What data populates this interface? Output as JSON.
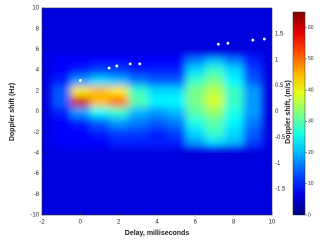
{
  "chart_data": {
    "type": "heatmap",
    "xlabel": "Delay, milliseconds",
    "ylabel": "Doppler shift (Hz)",
    "y2label": "Doppler shift, (m/s)",
    "x": [
      -1,
      0,
      1,
      2,
      3,
      4,
      5,
      6,
      7,
      8,
      9
    ],
    "y": [
      -3,
      -2,
      -1,
      0,
      1,
      2,
      3,
      4,
      5
    ],
    "z": [
      [
        8,
        8,
        8,
        10,
        10,
        10,
        10,
        18,
        22,
        20,
        12
      ],
      [
        8,
        8,
        10,
        12,
        12,
        10,
        12,
        22,
        28,
        22,
        14
      ],
      [
        8,
        10,
        14,
        18,
        16,
        14,
        16,
        26,
        30,
        24,
        16
      ],
      [
        10,
        18,
        25,
        28,
        20,
        18,
        20,
        30,
        34,
        26,
        18
      ],
      [
        14,
        60,
        45,
        50,
        30,
        24,
        24,
        32,
        38,
        28,
        18
      ],
      [
        14,
        42,
        45,
        42,
        28,
        22,
        22,
        32,
        36,
        28,
        18
      ],
      [
        10,
        18,
        22,
        20,
        16,
        14,
        14,
        28,
        32,
        24,
        14
      ],
      [
        8,
        10,
        12,
        12,
        10,
        10,
        10,
        22,
        28,
        22,
        12
      ],
      [
        8,
        8,
        8,
        8,
        8,
        8,
        8,
        16,
        20,
        16,
        10
      ]
    ],
    "background": 6,
    "markers": {
      "x": [
        0,
        1.5,
        1.9,
        2.6,
        3.1,
        7.2,
        7.7,
        9.0,
        9.6
      ],
      "y": [
        3,
        4.2,
        4.4,
        4.6,
        4.6,
        6.5,
        6.6,
        6.9,
        7.0
      ],
      "color": "#ffffff"
    },
    "xlim": [
      -2,
      10
    ],
    "xticks": [
      -2,
      0,
      2,
      4,
      6,
      8,
      10
    ],
    "ylim": [
      -10,
      10
    ],
    "yticks": [
      -10,
      -8,
      -6,
      -4,
      -2,
      0,
      2,
      4,
      6,
      8,
      10
    ],
    "y2lim": [
      -2,
      2
    ],
    "y2ticks": [
      -1.5,
      -1,
      -0.5,
      0,
      0.5,
      1,
      1.5
    ],
    "clim": [
      0,
      65
    ],
    "cticks": [
      0,
      10,
      20,
      30,
      40,
      50,
      60
    ],
    "colormap": "jet"
  }
}
